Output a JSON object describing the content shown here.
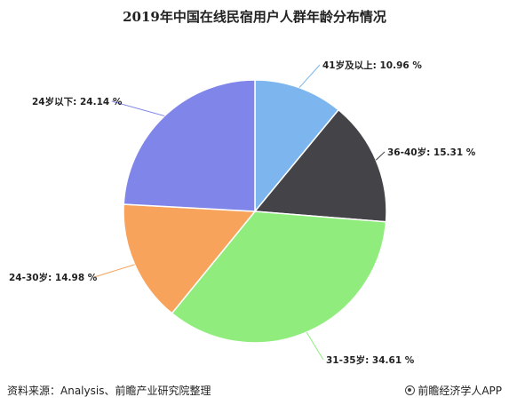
{
  "title": "2019年中国在线民宿用户人群年龄分布情况",
  "footer": {
    "source": "资料来源：Analysis、前瞻产业研究院整理",
    "brand": "前瞻经济学人APP"
  },
  "chart_data": {
    "type": "pie",
    "title": "2019年中国在线民宿用户人群年龄分布情况",
    "slices": [
      {
        "label": "41岁及以上",
        "value": 10.96,
        "text": "41岁及以上: 10.96 %",
        "color": "#7db6ee"
      },
      {
        "label": "36-40岁",
        "value": 15.31,
        "text": "36-40岁: 15.31 %",
        "color": "#434348"
      },
      {
        "label": "31-35岁",
        "value": 34.61,
        "text": "31-35岁: 34.61 %",
        "color": "#90ed7d"
      },
      {
        "label": "24-30岁",
        "value": 14.98,
        "text": "24-30岁: 14.98 %",
        "color": "#f7a35c"
      },
      {
        "label": "24岁以下",
        "value": 24.14,
        "text": "24岁以下: 24.14 %",
        "color": "#8085e9"
      }
    ]
  }
}
